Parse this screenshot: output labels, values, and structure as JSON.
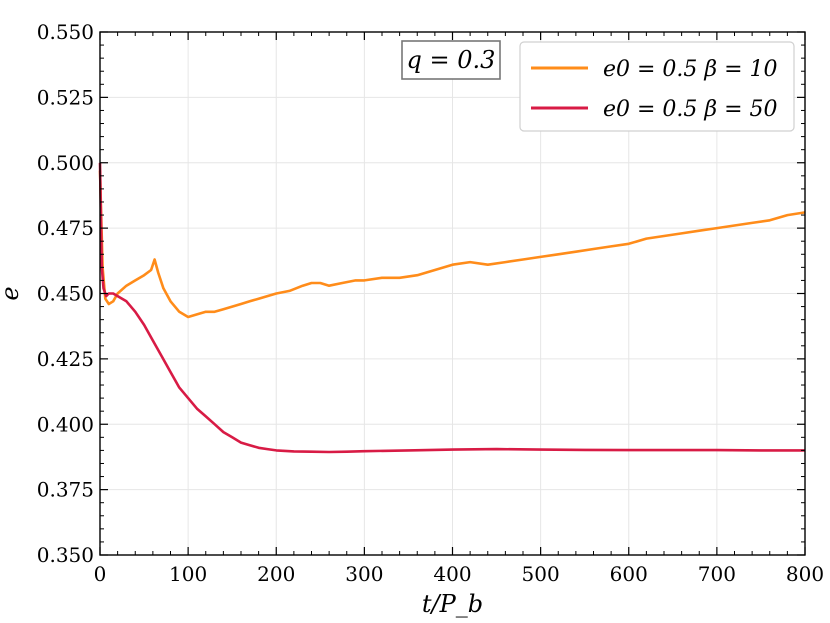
{
  "chart_data": {
    "type": "line",
    "title": "",
    "xlabel": "t/P_b",
    "ylabel": "e",
    "xlim": [
      0,
      800
    ],
    "ylim": [
      0.35,
      0.55
    ],
    "x_ticks": [
      "0",
      "100",
      "200",
      "300",
      "400",
      "500",
      "600",
      "700",
      "800"
    ],
    "y_ticks": [
      "0.350",
      "0.375",
      "0.400",
      "0.425",
      "0.450",
      "0.475",
      "0.500",
      "0.525",
      "0.550"
    ],
    "grid": true,
    "annotation": "q = 0.3",
    "legend_position": "top-right",
    "series": [
      {
        "name": "e0 = 0.5 β = 10",
        "color": "#ff8c1a",
        "x": [
          0,
          3,
          6,
          10,
          15,
          20,
          30,
          40,
          50,
          58,
          62,
          66,
          72,
          80,
          90,
          100,
          110,
          120,
          130,
          140,
          150,
          160,
          170,
          180,
          190,
          200,
          215,
          230,
          240,
          250,
          260,
          275,
          290,
          300,
          320,
          340,
          360,
          380,
          400,
          420,
          440,
          460,
          480,
          500,
          520,
          540,
          560,
          580,
          600,
          620,
          640,
          660,
          680,
          700,
          720,
          740,
          760,
          780,
          800
        ],
        "y": [
          0.497,
          0.46,
          0.448,
          0.446,
          0.447,
          0.45,
          0.453,
          0.455,
          0.457,
          0.459,
          0.463,
          0.458,
          0.452,
          0.447,
          0.443,
          0.441,
          0.442,
          0.443,
          0.443,
          0.444,
          0.445,
          0.446,
          0.447,
          0.448,
          0.449,
          0.45,
          0.451,
          0.453,
          0.454,
          0.454,
          0.453,
          0.454,
          0.455,
          0.455,
          0.456,
          0.456,
          0.457,
          0.459,
          0.461,
          0.462,
          0.461,
          0.462,
          0.463,
          0.464,
          0.465,
          0.466,
          0.467,
          0.468,
          0.469,
          0.471,
          0.472,
          0.473,
          0.474,
          0.475,
          0.476,
          0.477,
          0.478,
          0.48,
          0.481
        ]
      },
      {
        "name": "e0 = 0.5 β = 50",
        "color": "#d81b45",
        "x": [
          0,
          2,
          4,
          7,
          10,
          15,
          20,
          30,
          40,
          50,
          60,
          70,
          80,
          90,
          100,
          110,
          120,
          130,
          140,
          150,
          160,
          170,
          180,
          190,
          200,
          210,
          220,
          240,
          260,
          280,
          300,
          350,
          400,
          450,
          500,
          550,
          600,
          650,
          700,
          750,
          800
        ],
        "y": [
          0.5,
          0.46,
          0.452,
          0.449,
          0.45,
          0.45,
          0.449,
          0.447,
          0.443,
          0.438,
          0.432,
          0.426,
          0.42,
          0.414,
          0.41,
          0.406,
          0.403,
          0.4,
          0.397,
          0.395,
          0.393,
          0.392,
          0.391,
          0.3905,
          0.39,
          0.3898,
          0.3896,
          0.3895,
          0.3894,
          0.3895,
          0.3897,
          0.39,
          0.3903,
          0.3905,
          0.3903,
          0.3902,
          0.3901,
          0.3901,
          0.3901,
          0.39,
          0.39
        ]
      }
    ]
  }
}
